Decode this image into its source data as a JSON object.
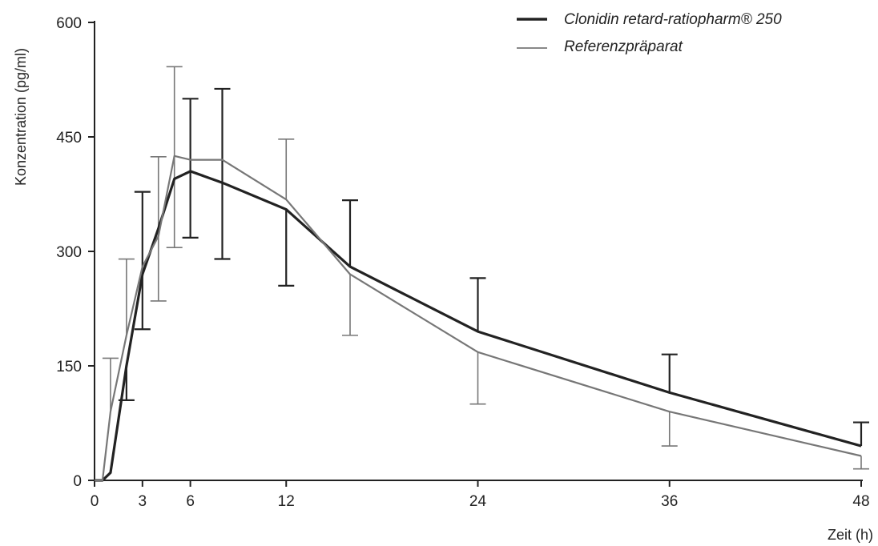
{
  "chart_data": {
    "type": "line",
    "xlabel": "Zeit (h)",
    "ylabel": "Konzentration (pg/ml)",
    "xlim": [
      0,
      48
    ],
    "ylim": [
      0,
      600
    ],
    "x_ticks": [
      0,
      3,
      6,
      12,
      24,
      36,
      48
    ],
    "y_ticks": [
      0,
      150,
      300,
      450,
      600
    ],
    "grid": false,
    "legend_position": "top-right",
    "series": [
      {
        "name": "Clonidin retard-ratiopharm® 250",
        "color": "#222222",
        "x": [
          0,
          0.5,
          1,
          2,
          3,
          4,
          5,
          6,
          8,
          12,
          16,
          24,
          36,
          48
        ],
        "y": [
          0,
          0,
          10,
          150,
          270,
          330,
          395,
          405,
          390,
          355,
          280,
          195,
          115,
          45
        ],
        "error_x": [
          2,
          3,
          6,
          8,
          12,
          16,
          24,
          36,
          48
        ],
        "error_low": [
          105,
          198,
          318,
          290,
          255,
          0,
          0,
          0,
          0
        ],
        "error_high": [
          0,
          378,
          500,
          513,
          0,
          367,
          265,
          165,
          76
        ]
      },
      {
        "name": "Referenzpräparat",
        "color": "#777777",
        "x": [
          0,
          0.5,
          1,
          2,
          3,
          4,
          5,
          6,
          8,
          12,
          16,
          24,
          36,
          48
        ],
        "y": [
          0,
          0,
          90,
          190,
          280,
          320,
          425,
          420,
          420,
          368,
          270,
          168,
          90,
          32
        ],
        "error_x": [
          1,
          2,
          3,
          4,
          5,
          12,
          16,
          24,
          36,
          48
        ],
        "error_low": [
          0,
          0,
          0,
          235,
          305,
          0,
          190,
          100,
          45,
          15
        ],
        "error_high": [
          160,
          290,
          0,
          424,
          542,
          447,
          0,
          0,
          0,
          0
        ]
      }
    ]
  }
}
